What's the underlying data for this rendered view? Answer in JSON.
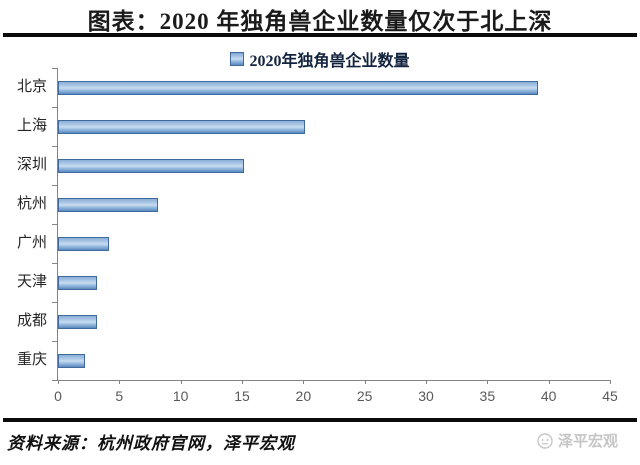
{
  "title": "图表：2020 年独角兽企业数量仅次于北上深",
  "legend": {
    "label": "2020年独角兽企业数量",
    "swatch_color": "#4F81BD"
  },
  "chart_data": {
    "type": "bar",
    "orientation": "horizontal",
    "title": "图表：2020 年独角兽企业数量仅次于北上深",
    "series_name": "2020年独角兽企业数量",
    "categories": [
      "北京",
      "上海",
      "深圳",
      "杭州",
      "广州",
      "天津",
      "成都",
      "重庆"
    ],
    "values": [
      39,
      20,
      15,
      8,
      4,
      3,
      3,
      2
    ],
    "xlim": [
      0,
      45
    ],
    "x_ticks": [
      0,
      5,
      10,
      15,
      20,
      25,
      30,
      35,
      40,
      45
    ],
    "grid": false,
    "legend_position": "top",
    "bar_color": "#4F81BD",
    "axis_color": "#848484",
    "tick_label_color": "#595959"
  },
  "footer": {
    "source": "资料来源：杭州政府官网，泽平宏观",
    "watermark": "泽平宏观"
  }
}
